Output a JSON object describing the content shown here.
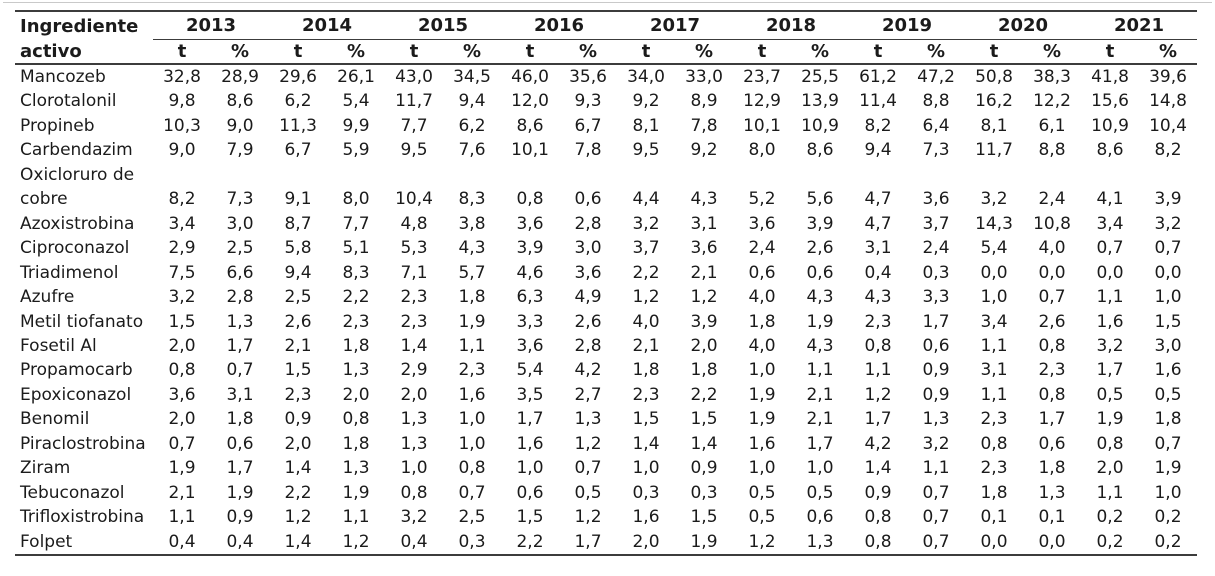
{
  "colors": {
    "text": "#1b1b1b",
    "rule_dark": "#3c3c3c",
    "rule_light": "#c9c9c9",
    "background": "#ffffff"
  },
  "table": {
    "header": {
      "ingredient_label_line1": "Ingrediente",
      "ingredient_label_line2": "activo",
      "years": [
        "2013",
        "2014",
        "2015",
        "2016",
        "2017",
        "2018",
        "2019",
        "2020",
        "2021"
      ],
      "unit_tonnes": "t",
      "unit_percent": "%"
    },
    "rows": [
      {
        "name": "Mancozeb",
        "values": [
          "32,8",
          "28,9",
          "29,6",
          "26,1",
          "43,0",
          "34,5",
          "46,0",
          "35,6",
          "34,0",
          "33,0",
          "23,7",
          "25,5",
          "61,2",
          "47,2",
          "50,8",
          "38,3",
          "41,8",
          "39,6"
        ]
      },
      {
        "name": "Clorotalonil",
        "values": [
          "9,8",
          "8,6",
          "6,2",
          "5,4",
          "11,7",
          "9,4",
          "12,0",
          "9,3",
          "9,2",
          "8,9",
          "12,9",
          "13,9",
          "11,4",
          "8,8",
          "16,2",
          "12,2",
          "15,6",
          "14,8"
        ]
      },
      {
        "name": "Propineb",
        "values": [
          "10,3",
          "9,0",
          "11,3",
          "9,9",
          "7,7",
          "6,2",
          "8,6",
          "6,7",
          "8,1",
          "7,8",
          "10,1",
          "10,9",
          "8,2",
          "6,4",
          "8,1",
          "6,1",
          "10,9",
          "10,4"
        ]
      },
      {
        "name": "Carbendazim",
        "values": [
          "9,0",
          "7,9",
          "6,7",
          "5,9",
          "9,5",
          "7,6",
          "10,1",
          "7,8",
          "9,5",
          "9,2",
          "8,0",
          "8,6",
          "9,4",
          "7,3",
          "11,7",
          "8,8",
          "8,6",
          "8,2"
        ]
      },
      {
        "name": "Oxicloruro de cobre",
        "values": [
          "8,2",
          "7,3",
          "9,1",
          "8,0",
          "10,4",
          "8,3",
          "0,8",
          "0,6",
          "4,4",
          "4,3",
          "5,2",
          "5,6",
          "4,7",
          "3,6",
          "3,2",
          "2,4",
          "4,1",
          "3,9"
        ]
      },
      {
        "name": "Azoxistrobina",
        "values": [
          "3,4",
          "3,0",
          "8,7",
          "7,7",
          "4,8",
          "3,8",
          "3,6",
          "2,8",
          "3,2",
          "3,1",
          "3,6",
          "3,9",
          "4,7",
          "3,7",
          "14,3",
          "10,8",
          "3,4",
          "3,2"
        ]
      },
      {
        "name": "Ciproconazol",
        "values": [
          "2,9",
          "2,5",
          "5,8",
          "5,1",
          "5,3",
          "4,3",
          "3,9",
          "3,0",
          "3,7",
          "3,6",
          "2,4",
          "2,6",
          "3,1",
          "2,4",
          "5,4",
          "4,0",
          "0,7",
          "0,7"
        ]
      },
      {
        "name": "Triadimenol",
        "values": [
          "7,5",
          "6,6",
          "9,4",
          "8,3",
          "7,1",
          "5,7",
          "4,6",
          "3,6",
          "2,2",
          "2,1",
          "0,6",
          "0,6",
          "0,4",
          "0,3",
          "0,0",
          "0,0",
          "0,0",
          "0,0"
        ]
      },
      {
        "name": "Azufre",
        "values": [
          "3,2",
          "2,8",
          "2,5",
          "2,2",
          "2,3",
          "1,8",
          "6,3",
          "4,9",
          "1,2",
          "1,2",
          "4,0",
          "4,3",
          "4,3",
          "3,3",
          "1,0",
          "0,7",
          "1,1",
          "1,0"
        ]
      },
      {
        "name": "Metil tiofanato",
        "values": [
          "1,5",
          "1,3",
          "2,6",
          "2,3",
          "2,3",
          "1,9",
          "3,3",
          "2,6",
          "4,0",
          "3,9",
          "1,8",
          "1,9",
          "2,3",
          "1,7",
          "3,4",
          "2,6",
          "1,6",
          "1,5"
        ]
      },
      {
        "name": "Fosetil Al",
        "values": [
          "2,0",
          "1,7",
          "2,1",
          "1,8",
          "1,4",
          "1,1",
          "3,6",
          "2,8",
          "2,1",
          "2,0",
          "4,0",
          "4,3",
          "0,8",
          "0,6",
          "1,1",
          "0,8",
          "3,2",
          "3,0"
        ]
      },
      {
        "name": "Propamocarb",
        "values": [
          "0,8",
          "0,7",
          "1,5",
          "1,3",
          "2,9",
          "2,3",
          "5,4",
          "4,2",
          "1,8",
          "1,8",
          "1,0",
          "1,1",
          "1,1",
          "0,9",
          "3,1",
          "2,3",
          "1,7",
          "1,6"
        ]
      },
      {
        "name": "Epoxiconazol",
        "values": [
          "3,6",
          "3,1",
          "2,3",
          "2,0",
          "2,0",
          "1,6",
          "3,5",
          "2,7",
          "2,3",
          "2,2",
          "1,9",
          "2,1",
          "1,2",
          "0,9",
          "1,1",
          "0,8",
          "0,5",
          "0,5"
        ]
      },
      {
        "name": "Benomil",
        "values": [
          "2,0",
          "1,8",
          "0,9",
          "0,8",
          "1,3",
          "1,0",
          "1,7",
          "1,3",
          "1,5",
          "1,5",
          "1,9",
          "2,1",
          "1,7",
          "1,3",
          "2,3",
          "1,7",
          "1,9",
          "1,8"
        ]
      },
      {
        "name": "Piraclostrobina",
        "values": [
          "0,7",
          "0,6",
          "2,0",
          "1,8",
          "1,3",
          "1,0",
          "1,6",
          "1,2",
          "1,4",
          "1,4",
          "1,6",
          "1,7",
          "4,2",
          "3,2",
          "0,8",
          "0,6",
          "0,8",
          "0,7"
        ]
      },
      {
        "name": "Ziram",
        "values": [
          "1,9",
          "1,7",
          "1,4",
          "1,3",
          "1,0",
          "0,8",
          "1,0",
          "0,7",
          "1,0",
          "0,9",
          "1,0",
          "1,0",
          "1,4",
          "1,1",
          "2,3",
          "1,8",
          "2,0",
          "1,9"
        ]
      },
      {
        "name": "Tebuconazol",
        "values": [
          "2,1",
          "1,9",
          "2,2",
          "1,9",
          "0,8",
          "0,7",
          "0,6",
          "0,5",
          "0,3",
          "0,3",
          "0,5",
          "0,5",
          "0,9",
          "0,7",
          "1,8",
          "1,3",
          "1,1",
          "1,0"
        ]
      },
      {
        "name": "Trifloxistrobina",
        "values": [
          "1,1",
          "0,9",
          "1,2",
          "1,1",
          "3,2",
          "2,5",
          "1,5",
          "1,2",
          "1,6",
          "1,5",
          "0,5",
          "0,6",
          "0,8",
          "0,7",
          "0,1",
          "0,1",
          "0,2",
          "0,2"
        ]
      },
      {
        "name": "Folpet",
        "values": [
          "0,4",
          "0,4",
          "1,4",
          "1,2",
          "0,4",
          "0,3",
          "2,2",
          "1,7",
          "2,0",
          "1,9",
          "1,2",
          "1,3",
          "0,8",
          "0,7",
          "0,0",
          "0,0",
          "0,2",
          "0,2"
        ]
      }
    ]
  }
}
